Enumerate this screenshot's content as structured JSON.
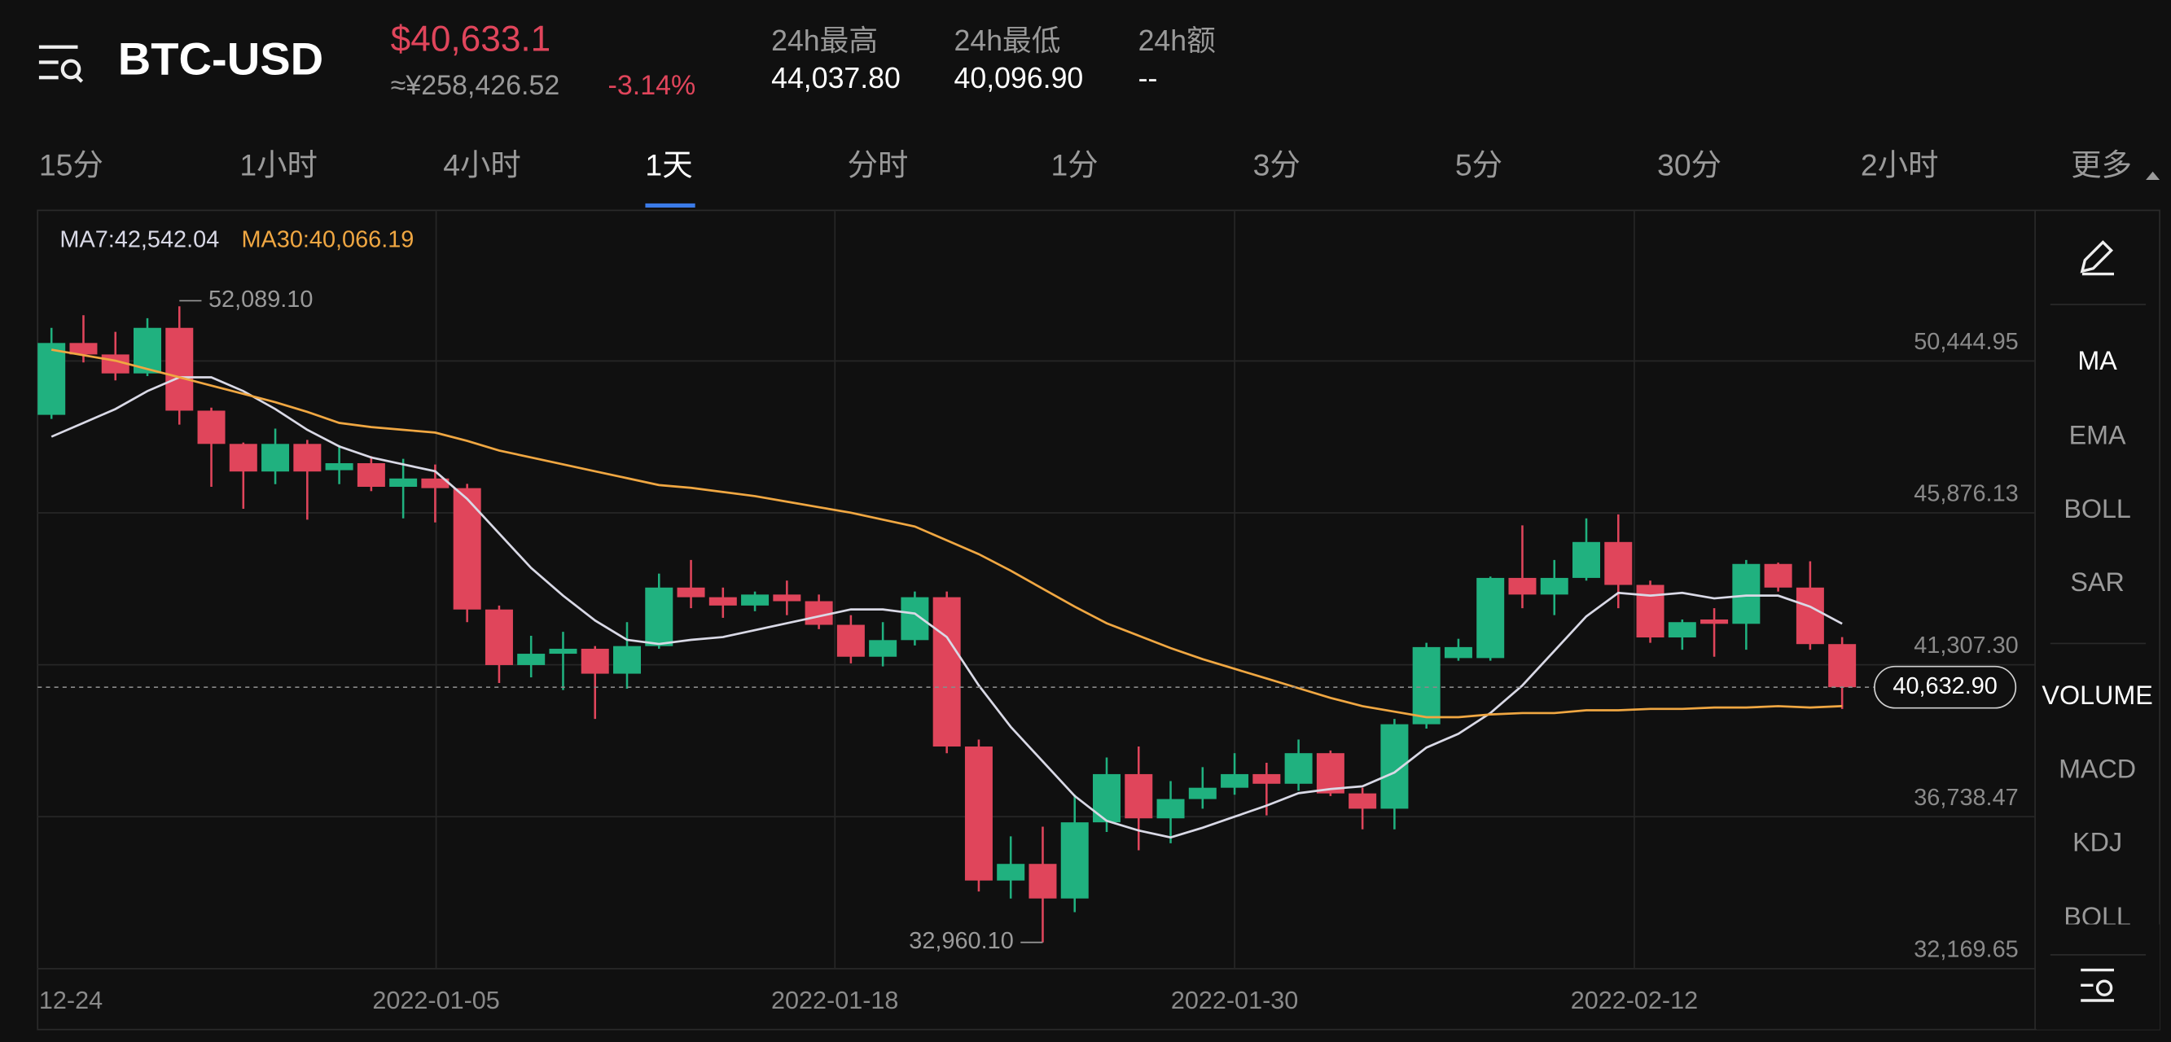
{
  "header": {
    "symbol": "BTC-USD",
    "price": "$40,633.1",
    "cny_price": "≈¥258,426.52",
    "change": "-3.14%",
    "stats": [
      {
        "label": "24h最高",
        "value": "44,037.80"
      },
      {
        "label": "24h最低",
        "value": "40,096.90"
      },
      {
        "label": "24h额",
        "value": "--"
      }
    ]
  },
  "tabs": {
    "items": [
      "15分",
      "1小时",
      "4小时",
      "1天",
      "分时",
      "1分",
      "3分",
      "5分",
      "30分",
      "2小时",
      "更多"
    ],
    "active": 3
  },
  "side_menu": {
    "items": [
      "MA",
      "EMA",
      "BOLL",
      "SAR",
      "VOLUME",
      "MACD",
      "KDJ",
      "BOLL"
    ]
  },
  "chart_data": {
    "type": "candlestick",
    "up_color": "#20b17f",
    "down_color": "#e0455b",
    "open": [
      48824,
      50985,
      50640,
      50070,
      51440,
      48950,
      47950,
      47120,
      47950,
      47160,
      47370,
      46660,
      46910,
      46620,
      42970,
      41300,
      41640,
      41790,
      41040,
      41870,
      43630,
      43340,
      43090,
      43420,
      43220,
      42510,
      41550,
      42050,
      43340,
      38850,
      34820,
      35320,
      34280,
      36570,
      38020,
      36690,
      37270,
      37610,
      38020,
      37730,
      38650,
      37440,
      36980,
      39520,
      41510,
      41510,
      43920,
      43420,
      43920,
      45000,
      43710,
      42130,
      42670,
      42540,
      44340,
      43630,
      41930
    ],
    "high": [
      51440,
      51820,
      51320,
      51730,
      52089.1,
      49040,
      47990,
      48410,
      48070,
      47910,
      47580,
      47500,
      47330,
      46750,
      43090,
      42180,
      42300,
      41870,
      42590,
      44050,
      44460,
      43630,
      43510,
      43840,
      43420,
      42800,
      42590,
      43510,
      43510,
      39060,
      36150,
      36440,
      37400,
      38520,
      38850,
      37810,
      38230,
      38650,
      38360,
      39060,
      38730,
      37610,
      39680,
      41970,
      42090,
      43960,
      45500,
      44460,
      45710,
      45830,
      43840,
      42670,
      43010,
      44460,
      44380,
      44420,
      42141
    ],
    "low": [
      48700,
      50400,
      49860,
      49990,
      48530,
      46660,
      46000,
      46740,
      45670,
      46740,
      46530,
      45710,
      45590,
      42590,
      40760,
      40930,
      40550,
      39680,
      40590,
      41790,
      43010,
      42720,
      42920,
      42800,
      42380,
      41350,
      41260,
      41890,
      38650,
      34490,
      34280,
      32960.1,
      33870,
      36280,
      35730,
      35940,
      36980,
      37400,
      36780,
      37520,
      37360,
      36360,
      36360,
      39390,
      41430,
      41430,
      43010,
      42800,
      43840,
      43010,
      41970,
      41760,
      41550,
      41760,
      43510,
      41760,
      39981
    ],
    "close": [
      50985,
      50640,
      50070,
      51440,
      48950,
      47950,
      47120,
      47950,
      47120,
      47370,
      46660,
      46910,
      46620,
      42970,
      41300,
      41640,
      41790,
      41040,
      41870,
      43630,
      43340,
      43090,
      43420,
      43220,
      42510,
      41550,
      42050,
      43340,
      38850,
      34820,
      35320,
      34280,
      36570,
      38020,
      36690,
      37270,
      37610,
      38020,
      37730,
      38650,
      37440,
      36980,
      39520,
      41840,
      41840,
      43920,
      43420,
      43920,
      45000,
      43710,
      42130,
      42590,
      42540,
      44340,
      43630,
      41930,
      40632.9
    ],
    "series": [
      {
        "name": "MA7:42,542.04",
        "color": "#d9d9e6",
        "values": [
          48167,
          48582,
          48998,
          49538,
          49953,
          49953,
          49538,
          48998,
          48374,
          47875,
          47543,
          47335,
          47127,
          46296,
          45258,
          44219,
          43388,
          42640,
          42058,
          41934,
          42058,
          42142,
          42349,
          42557,
          42765,
          42973,
          42973,
          42848,
          42142,
          40687,
          39441,
          38402,
          37363,
          36615,
          36324,
          36117,
          36408,
          36740,
          37072,
          37446,
          37571,
          37654,
          38070,
          38818,
          39233,
          39856,
          40687,
          41726,
          42765,
          43471,
          43388,
          43471,
          43305,
          43388,
          43388,
          43056,
          42542.04
        ]
      },
      {
        "name": "MA30:40,066.19",
        "color": "#f0a742",
        "values": [
          50784,
          50618,
          50452,
          50202,
          49953,
          49704,
          49454,
          49205,
          48914,
          48582,
          48457,
          48374,
          48291,
          48042,
          47751,
          47543,
          47335,
          47127,
          46920,
          46712,
          46629,
          46504,
          46380,
          46213,
          46047,
          45881,
          45673,
          45466,
          45050,
          44635,
          44136,
          43596,
          43056,
          42557,
          42183,
          41809,
          41477,
          41186,
          40895,
          40604,
          40313,
          40064,
          39898,
          39732,
          39732,
          39815,
          39856,
          39856,
          39940,
          39940,
          39981,
          39981,
          40022,
          40022,
          40064,
          40022,
          40066.19
        ]
      }
    ],
    "annotations": [
      "52,089.10",
      "32,960.10"
    ],
    "last_price_label": "40,632.90",
    "ylim": [
      32169.65,
      54974
    ],
    "yticks": [
      {
        "value": 32169.65,
        "label": "32,169.65"
      },
      {
        "value": 36738.47,
        "label": "36,738.47"
      },
      {
        "value": 41307.3,
        "label": "41,307.30"
      },
      {
        "value": 45876.13,
        "label": "45,876.13"
      },
      {
        "value": 50444.95,
        "label": "50,444.95"
      }
    ],
    "xticks": [
      {
        "value": 0,
        "label": "12-24"
      },
      {
        "value": 12.03,
        "label": "2022-01-05"
      },
      {
        "value": 24.5,
        "label": "2022-01-18"
      },
      {
        "value": 37,
        "label": "2022-01-30"
      },
      {
        "value": 49.5,
        "label": "2022-02-12"
      }
    ],
    "grid": true
  }
}
